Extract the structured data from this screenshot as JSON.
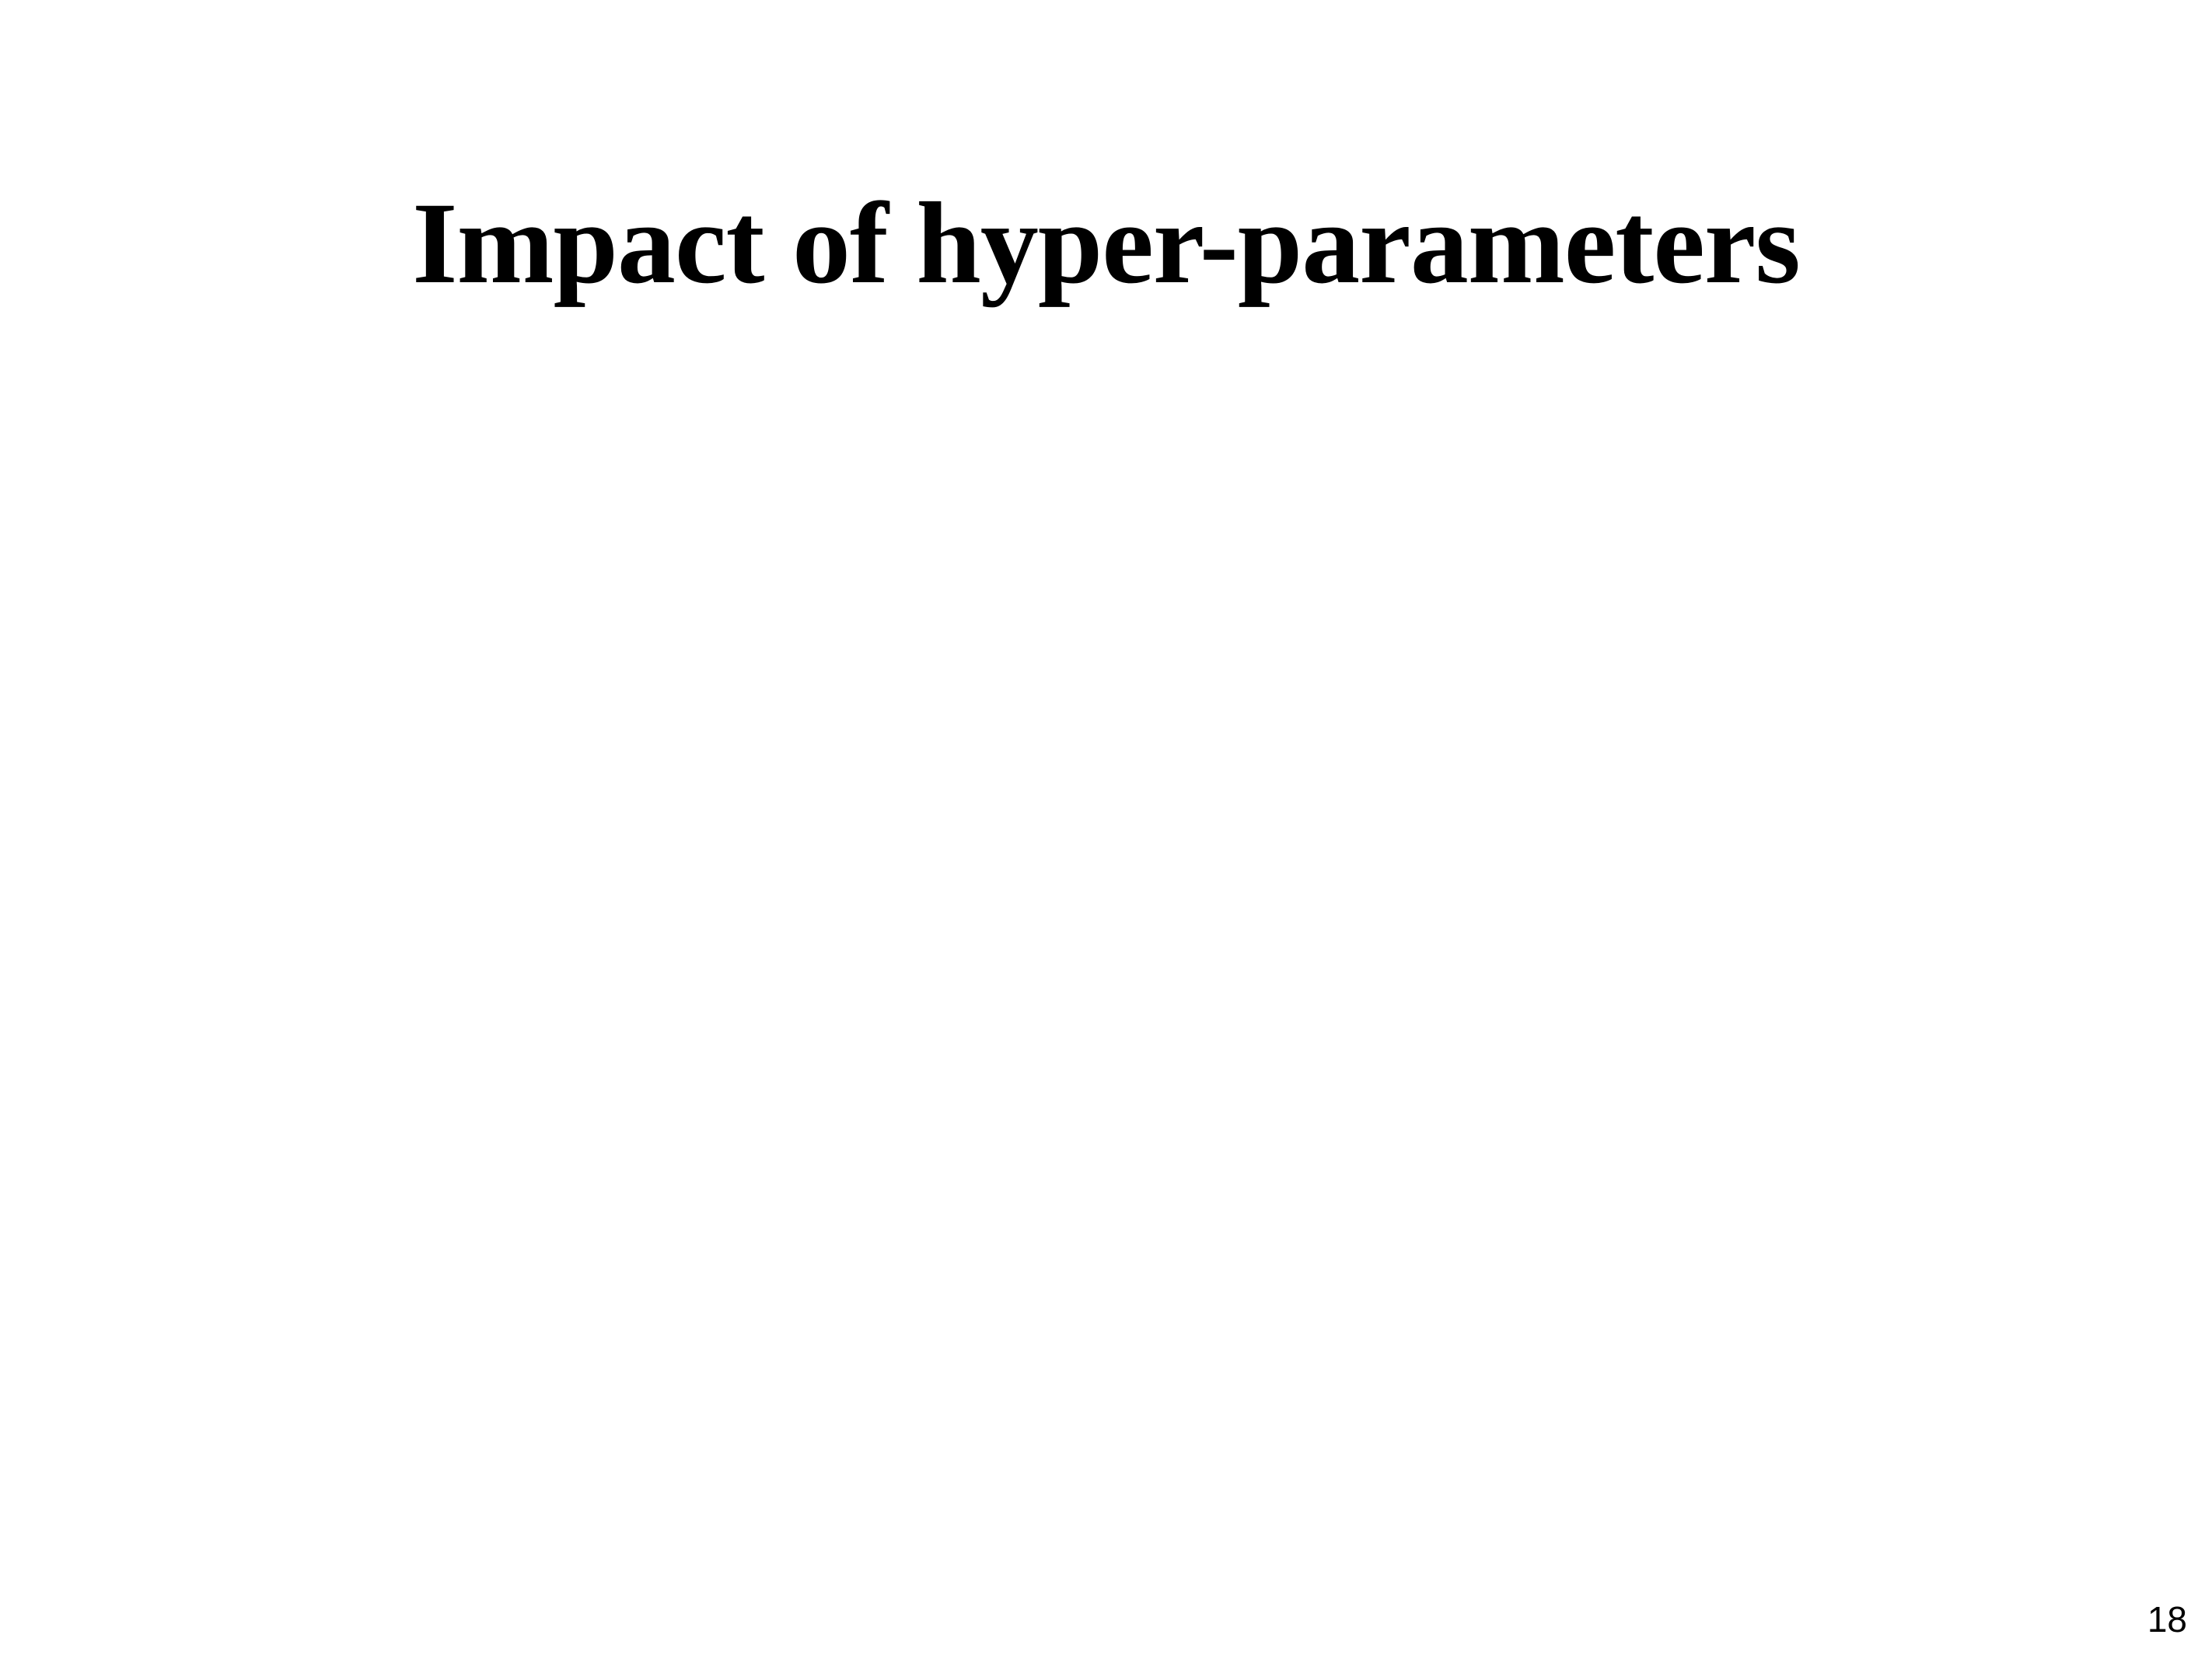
{
  "slide": {
    "title": "Impact of hyper-parameters",
    "page_number": "18"
  }
}
